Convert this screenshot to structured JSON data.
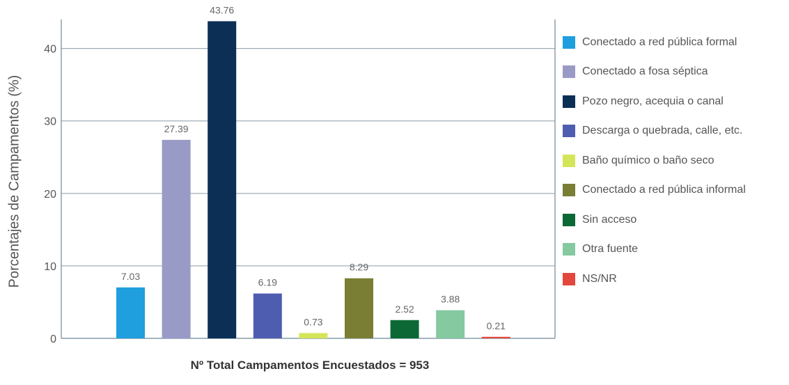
{
  "chart_data": {
    "type": "bar",
    "xlabel": "Nº Total Campamentos  Encuestados = 953",
    "ylabel": "Porcentajes de Campamentos (%)",
    "ylim": [
      0,
      44
    ],
    "yticks": [
      0,
      10,
      20,
      30,
      40
    ],
    "grid": true,
    "legend_position": "right",
    "categories": [
      "Conectado a red pública formal",
      "Conectado a fosa séptica",
      "Pozo negro, acequia o canal",
      "Descarga o quebrada, calle, etc.",
      "Baño químico o baño seco",
      "Conectado a red pública informal",
      "Sin acceso",
      "Otra fuente",
      "NS/NR"
    ],
    "values": [
      7.03,
      27.39,
      43.76,
      6.19,
      0.73,
      8.29,
      2.52,
      3.88,
      0.21
    ],
    "value_labels": [
      "7.03",
      "27.39",
      "43.76",
      "6.19",
      "0.73",
      "8.29",
      "2.52",
      "3.88",
      "0.21"
    ],
    "colors": [
      "#1f9fdd",
      "#9a9ac7",
      "#0b2f55",
      "#4f5db0",
      "#d4e55a",
      "#7a7d34",
      "#0c6936",
      "#84c9a0",
      "#e2473d"
    ]
  }
}
